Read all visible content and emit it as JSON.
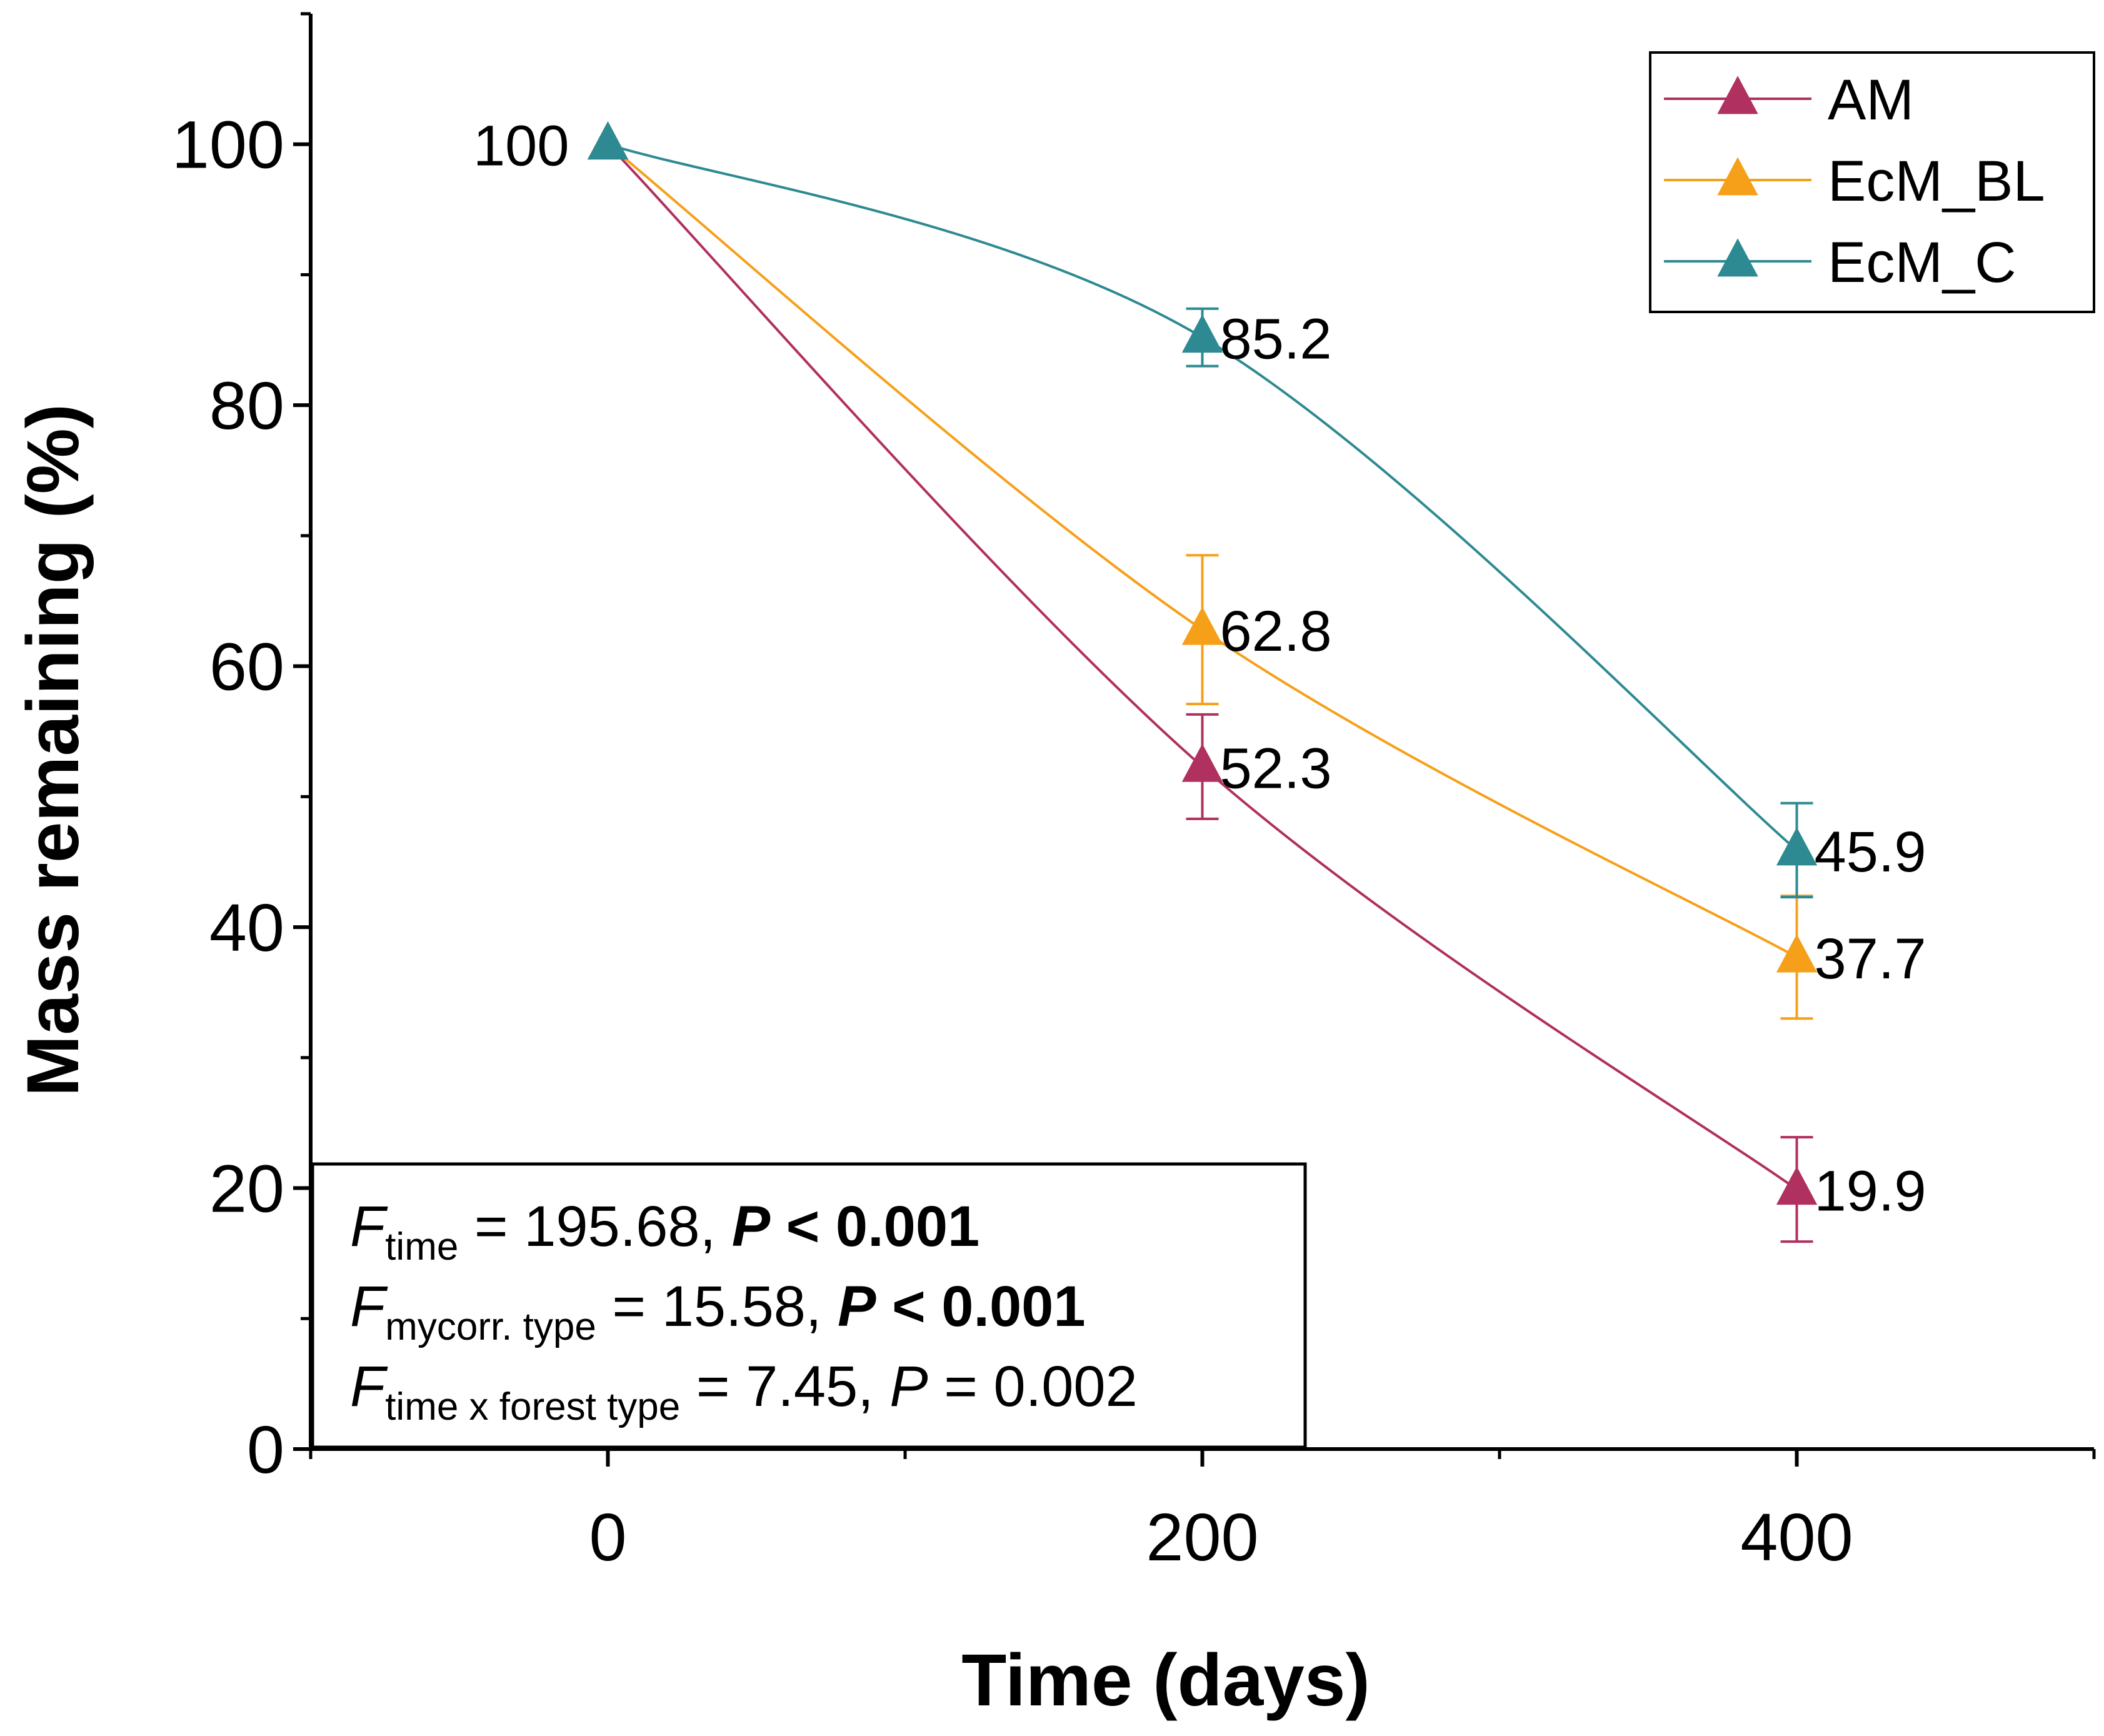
{
  "chart_data": {
    "type": "line",
    "xlabel": "Time (days)",
    "ylabel": "Mass remaining (%)",
    "xlim": [
      -100,
      500
    ],
    "ylim": [
      0,
      110
    ],
    "x_ticks": [
      0,
      200,
      400
    ],
    "y_ticks": [
      0,
      20,
      40,
      60,
      80,
      100
    ],
    "x_ticks_minor": [
      -100,
      100,
      300,
      500
    ],
    "y_ticks_minor": [
      10,
      30,
      50,
      70,
      90,
      110
    ],
    "x": [
      0,
      200,
      400
    ],
    "series": [
      {
        "name": "AM",
        "color": "#B03060",
        "values": [
          100,
          52.3,
          19.9
        ],
        "errors": [
          0,
          4.0,
          4.0
        ],
        "labels": [
          "",
          "52.3",
          "19.9"
        ]
      },
      {
        "name": "EcM_BL",
        "color": "#F6A01A",
        "values": [
          100,
          62.8,
          37.7
        ],
        "errors": [
          0,
          5.7,
          4.7
        ],
        "labels": [
          "",
          "62.8",
          "37.7"
        ]
      },
      {
        "name": "EcM_C",
        "color": "#2E8A92",
        "values": [
          100,
          85.2,
          45.9
        ],
        "errors": [
          0,
          2.2,
          3.6
        ],
        "labels": [
          "100",
          "85.2",
          "45.9"
        ]
      }
    ],
    "legend_position": "top-right",
    "annotation": {
      "lines": [
        {
          "f_symbol": "F",
          "subscript": "time",
          "stat": " = 195.68, ",
          "p_symbol": "P",
          "p_text": " < 0.001",
          "p_bold": true
        },
        {
          "f_symbol": "F",
          "subscript": "mycorr. type",
          "stat": " = 15.58, ",
          "p_symbol": "P",
          "p_text": " < 0.001",
          "p_bold": true
        },
        {
          "f_symbol": "F",
          "subscript": "time x forest type",
          "stat": " = 7.45, ",
          "p_symbol": "P",
          "p_text": " = 0.002",
          "p_bold": false
        }
      ]
    }
  }
}
